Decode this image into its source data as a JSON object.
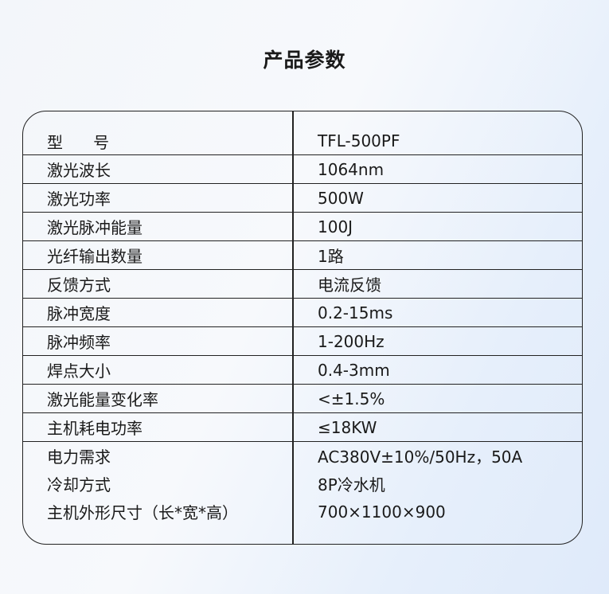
{
  "title": "产品参数",
  "rows": [
    {
      "label": "型      号",
      "value": "TFL-500PF"
    },
    {
      "label": "激光波长",
      "value": "1064nm"
    },
    {
      "label": "激光功率",
      "value": "500W"
    },
    {
      "label": "激光脉冲能量",
      "value": "100J"
    },
    {
      "label": "光纤输出数量",
      "value": "1路"
    },
    {
      "label": "反馈方式",
      "value": "电流反馈"
    },
    {
      "label": "脉冲宽度",
      "value": "0.2-15ms"
    },
    {
      "label": "脉冲频率",
      "value": "1-200Hz"
    },
    {
      "label": "焊点大小",
      "value": "0.4-3mm"
    },
    {
      "label": "激光能量变化率",
      "value": "<±1.5%"
    },
    {
      "label": "主机耗电功率",
      "value": "≤18KW"
    },
    {
      "label": "电力需求",
      "value": "AC380V±10%/50Hz，50A"
    },
    {
      "label": "冷却方式",
      "value": "8P冷水机"
    },
    {
      "label": "主机外形尺寸（长*宽*高）",
      "value": "700×1100×900"
    }
  ]
}
